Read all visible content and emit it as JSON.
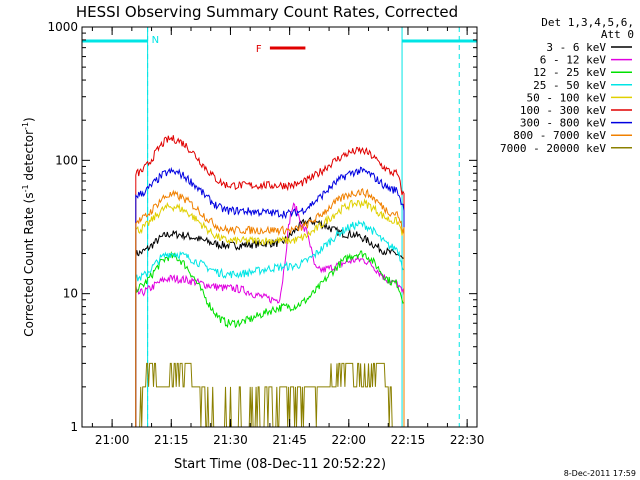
{
  "chart_data": {
    "type": "line",
    "title": "HESSI Observing Summary Count Rates, Corrected",
    "xlabel": "Start Time (08-Dec-11 20:52:22)",
    "ylabel": "Corrected Count Rate (s",
    "ylabel_sup": "-1",
    "ylabel_tail": " detector",
    "ylabel_tail_sup": "-1",
    "ylabel_end": ")",
    "yscale": "log",
    "ylim": [
      1,
      1000
    ],
    "xlim": [
      "20:52:22",
      "22:32:30"
    ],
    "x_ticks": [
      "21:00",
      "21:15",
      "21:30",
      "21:45",
      "22:00",
      "22:15",
      "22:30"
    ],
    "y_ticks": [
      "1",
      "10",
      "100",
      "1000"
    ],
    "legend_header": [
      "Det 1,3,4,5,6,",
      "Att 0"
    ],
    "legend_placement": "right",
    "footer": "8-Dec-2011 17:59",
    "annotations": [
      {
        "label": "N",
        "color": "#00e5e5"
      },
      {
        "label": "F",
        "color": "#e00000"
      }
    ],
    "night_intervals": [
      [
        "20:52:22",
        "21:09:00"
      ],
      [
        "22:13:30",
        "22:32:30"
      ]
    ],
    "flare_interval": [
      "21:40:00",
      "21:49:00"
    ],
    "saa_lines": [
      "21:09:00",
      "22:28:00"
    ],
    "series": [
      {
        "name": "3 - 6 keV",
        "color": "#000000",
        "x": [
          "21:06",
          "21:15",
          "21:30",
          "21:42",
          "21:50",
          "22:00",
          "22:12",
          "22:14"
        ],
        "values": [
          20,
          28,
          23,
          24,
          35,
          28,
          20,
          18
        ]
      },
      {
        "name": "6 - 12 keV",
        "color": "#e000e0",
        "x": [
          "21:06",
          "21:15",
          "21:30",
          "21:42",
          "21:46",
          "21:49",
          "21:52",
          "22:03",
          "22:12",
          "22:14"
        ],
        "values": [
          10,
          13,
          11,
          9,
          45,
          30,
          15,
          18,
          12,
          10
        ]
      },
      {
        "name": "12 - 25 keV",
        "color": "#00e000",
        "x": [
          "21:06",
          "21:15",
          "21:30",
          "21:45",
          "22:03",
          "22:12",
          "22:14"
        ],
        "values": [
          11,
          19,
          6,
          8,
          20,
          12,
          9
        ]
      },
      {
        "name": "25 - 50 keV",
        "color": "#00e5e5",
        "x": [
          "21:06",
          "21:15",
          "21:30",
          "21:45",
          "22:03",
          "22:12",
          "22:14"
        ],
        "values": [
          13,
          20,
          14,
          16,
          33,
          22,
          16
        ]
      },
      {
        "name": "50 - 100 keV",
        "color": "#e0d000",
        "x": [
          "21:06",
          "21:15",
          "21:30",
          "21:45",
          "22:03",
          "22:12",
          "22:14"
        ],
        "values": [
          30,
          45,
          25,
          25,
          48,
          35,
          28
        ]
      },
      {
        "name": "100 - 300 keV",
        "color": "#e00000",
        "x": [
          "21:06",
          "21:15",
          "21:30",
          "21:45",
          "22:03",
          "22:12",
          "22:14"
        ],
        "values": [
          80,
          145,
          65,
          65,
          118,
          80,
          55
        ]
      },
      {
        "name": "300 - 800 keV",
        "color": "#0000e0",
        "x": [
          "21:06",
          "21:15",
          "21:30",
          "21:45",
          "22:03",
          "22:12",
          "22:14"
        ],
        "values": [
          55,
          82,
          42,
          40,
          83,
          60,
          45
        ]
      },
      {
        "name": "800 - 7000 keV",
        "color": "#f08000",
        "x": [
          "21:06",
          "21:15",
          "21:30",
          "21:45",
          "22:03",
          "22:12",
          "22:14"
        ],
        "values": [
          35,
          55,
          30,
          30,
          58,
          40,
          30
        ]
      },
      {
        "name": "7000 - 20000 keV",
        "color": "#8b8000",
        "x": [
          "21:06",
          "21:08",
          "21:10",
          "21:14",
          "21:18",
          "21:22",
          "21:26",
          "21:56",
          "21:59",
          "22:04",
          "22:08",
          "22:12"
        ],
        "values": [
          1,
          2,
          3,
          2,
          3,
          2,
          1,
          2,
          3,
          2,
          3,
          1
        ]
      }
    ]
  }
}
